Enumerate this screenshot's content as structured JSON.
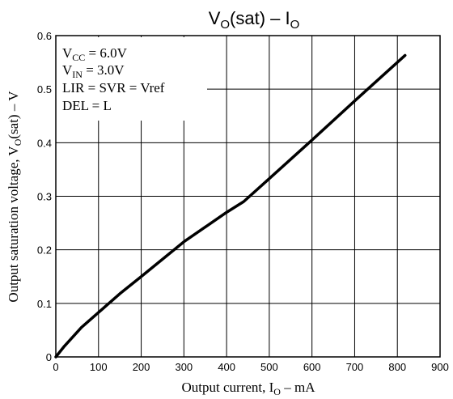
{
  "chart_data": {
    "type": "line",
    "title": {
      "main": "V",
      "main_sub": "O",
      "rest": "(sat) – I",
      "rest_sub": "O"
    },
    "xlabel": {
      "main": "Output current, I",
      "sub": "O",
      "rest": " – mA"
    },
    "ylabel": {
      "main": "Output saturation voltage, V",
      "sub": "O",
      "rest": "(sat) – V"
    },
    "xlim": [
      0,
      900
    ],
    "ylim": [
      0,
      0.6
    ],
    "xticks": [
      0,
      100,
      200,
      300,
      400,
      500,
      600,
      700,
      800,
      900
    ],
    "yticks": [
      0,
      0.1,
      0.2,
      0.3,
      0.4,
      0.5,
      0.6
    ],
    "xtick_labels": [
      "0",
      "100",
      "200",
      "300",
      "400",
      "500",
      "600",
      "700",
      "800",
      "900"
    ],
    "ytick_labels": [
      "0",
      "0.1",
      "0.2",
      "0.3",
      "0.4",
      "0.5",
      "0.6"
    ],
    "grid": true,
    "annotations": [
      {
        "main": "V",
        "sub": "CC",
        "rest": " = 6.0V"
      },
      {
        "main": "V",
        "sub": "IN",
        "rest": " = 3.0V"
      },
      {
        "main": "LIR = SVR = Vref",
        "sub": "",
        "rest": ""
      },
      {
        "main": "DEL = L",
        "sub": "",
        "rest": ""
      }
    ],
    "series": [
      {
        "x": [
          0,
          20,
          60,
          100,
          150,
          200,
          300,
          400,
          440,
          500,
          600,
          700,
          818
        ],
        "y": [
          0,
          0.02,
          0.055,
          0.083,
          0.118,
          0.15,
          0.215,
          0.27,
          0.29,
          0.333,
          0.405,
          0.478,
          0.563
        ],
        "color": "#000000"
      }
    ]
  }
}
